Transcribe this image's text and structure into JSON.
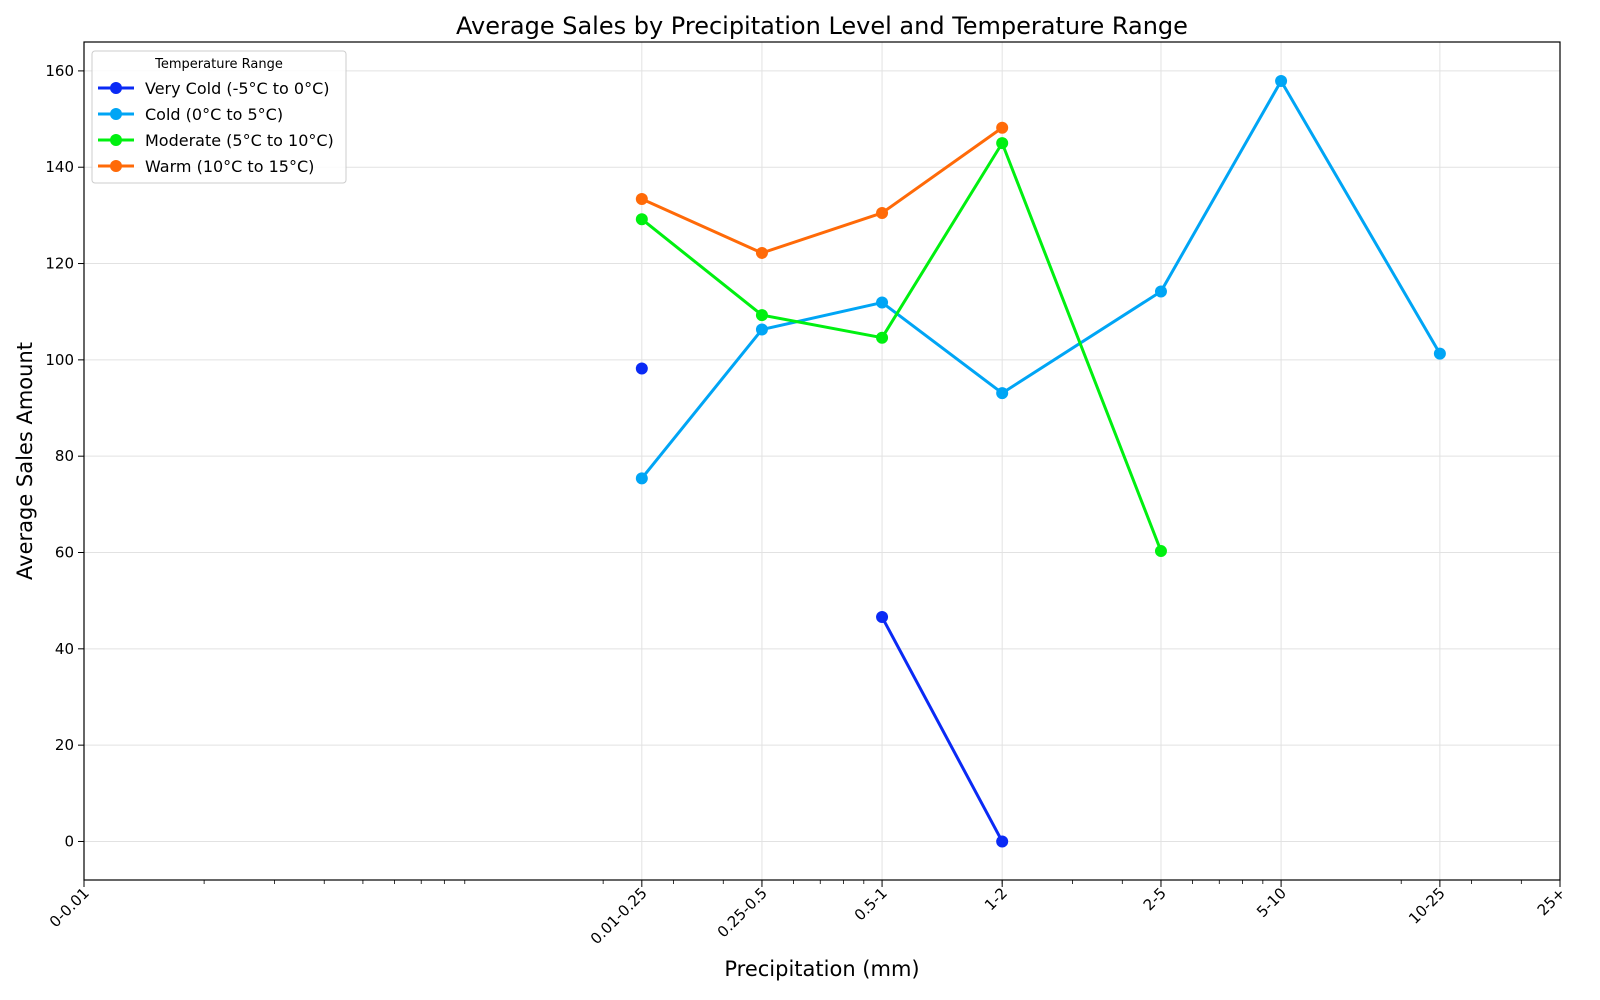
{
  "chart_data": {
    "type": "line",
    "title": "Average Sales by Precipitation Level and Temperature Range",
    "xlabel": "Precipitation (mm)",
    "ylabel": "Average Sales Amount",
    "x_scale": "log",
    "x_ticks": [
      "0-0.01",
      "0.01-0.25",
      "0.25-0.5",
      "0.5-1",
      "1-2",
      "2-5",
      "5-10",
      "10-25",
      "25+"
    ],
    "categories": [
      "0.01-0.25",
      "0.25-0.5",
      "0.5-1",
      "1-2",
      "2-5",
      "5-10",
      "10-25"
    ],
    "ylim": [
      -8,
      166
    ],
    "y_ticks": [
      0,
      20,
      40,
      60,
      80,
      100,
      120,
      140,
      160
    ],
    "grid": true,
    "legend": {
      "title": "Temperature Range",
      "placement": "top-left"
    },
    "series": [
      {
        "name": "Very Cold (-5°C to 0°C)",
        "color": "#0a2af5",
        "values": [
          98.2,
          null,
          46.6,
          0,
          null,
          null,
          null
        ]
      },
      {
        "name": "Cold (0°C to 5°C)",
        "color": "#00a5f5",
        "values": [
          75.4,
          106.3,
          111.9,
          93.1,
          114.2,
          157.9,
          101.3
        ]
      },
      {
        "name": "Moderate (5°C to 10°C)",
        "color": "#00f010",
        "values": [
          129.2,
          109.3,
          104.6,
          145.0,
          60.3,
          null,
          null
        ]
      },
      {
        "name": "Warm (10°C to 15°C)",
        "color": "#ff6a08",
        "values": [
          133.4,
          122.2,
          130.5,
          148.2,
          null,
          null,
          null
        ]
      }
    ]
  }
}
